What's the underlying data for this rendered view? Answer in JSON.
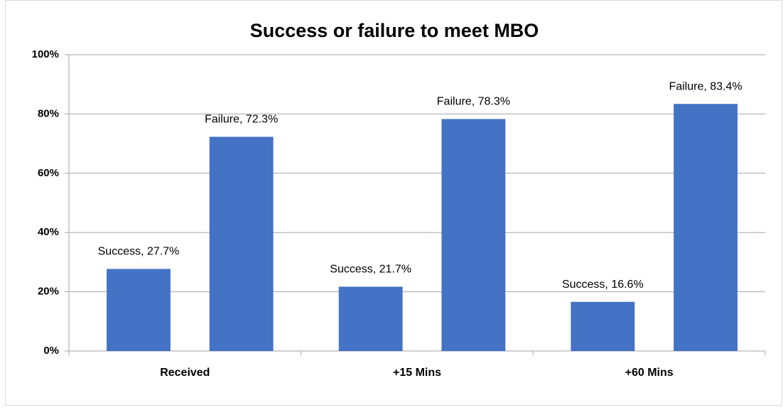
{
  "chart_data": {
    "type": "bar",
    "title": "Success or failure to meet MBO",
    "categories": [
      "Received",
      "+15 Mins",
      "+60 Mins"
    ],
    "series": [
      {
        "name": "Success",
        "color": "#4472c4",
        "values": [
          27.7,
          21.7,
          16.6
        ],
        "value_labels": [
          "Success, 27.7%",
          "Success, 21.7%",
          "Success, 16.6%"
        ]
      },
      {
        "name": "Failure",
        "color": "#4472c4",
        "values": [
          72.3,
          78.3,
          83.4
        ],
        "value_labels": [
          "Failure, 72.3%",
          "Failure, 78.3%",
          "Failure, 83.4%"
        ]
      }
    ],
    "ylim": [
      0,
      100
    ],
    "yticks": [
      {
        "value": 0,
        "label": "0%"
      },
      {
        "value": 20,
        "label": "20%"
      },
      {
        "value": 40,
        "label": "40%"
      },
      {
        "value": 60,
        "label": "60%"
      },
      {
        "value": 80,
        "label": "80%"
      },
      {
        "value": 100,
        "label": "100%"
      }
    ],
    "grid": true
  }
}
